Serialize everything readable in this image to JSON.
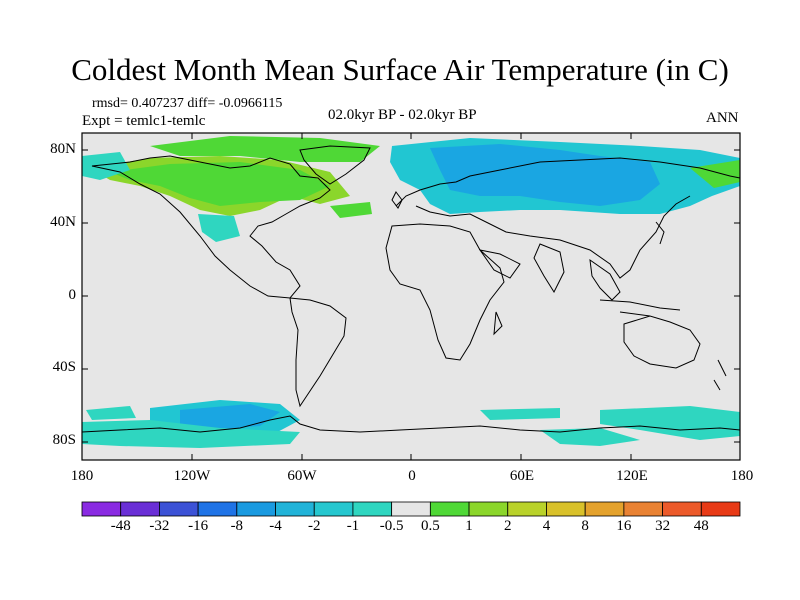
{
  "title": "Coldest Month Mean Surface Air Temperature (in C)",
  "stats": "rmsd= 0.407237  diff= -0.0966115",
  "experiment": "Expt = temlc1-temlc",
  "period": "02.0kyr BP - 02.0kyr BP",
  "season": "ANN",
  "y_ticks": [
    "80N",
    "40N",
    "0",
    "40S",
    "80S"
  ],
  "x_ticks": [
    "180",
    "120W",
    "60W",
    "0",
    "60E",
    "120E",
    "180"
  ],
  "colorbar": {
    "colors": [
      "#8a2be2",
      "#6a2fd6",
      "#3c52d6",
      "#1f73e6",
      "#1a9ae0",
      "#21b3d8",
      "#26c7cf",
      "#2fd6c0",
      "#e6e6e6",
      "#4fd836",
      "#8bd62b",
      "#b9d22a",
      "#d9c12a",
      "#e4a22d",
      "#e98233",
      "#ec5a2a",
      "#e83a16"
    ],
    "labels": [
      "-48",
      "-32",
      "-16",
      "-8",
      "-4",
      "-2",
      "-1",
      "-0.5",
      "0.5",
      "1",
      "2",
      "4",
      "8",
      "16",
      "32",
      "48"
    ]
  },
  "map_colors": {
    "ocean_land_fill": "#e6e6e6",
    "cyan_light": "#2fd6c0",
    "cyan_mid": "#21c6d2",
    "blue": "#1aa6e2",
    "green": "#4fd836",
    "lime": "#8bd62b"
  }
}
